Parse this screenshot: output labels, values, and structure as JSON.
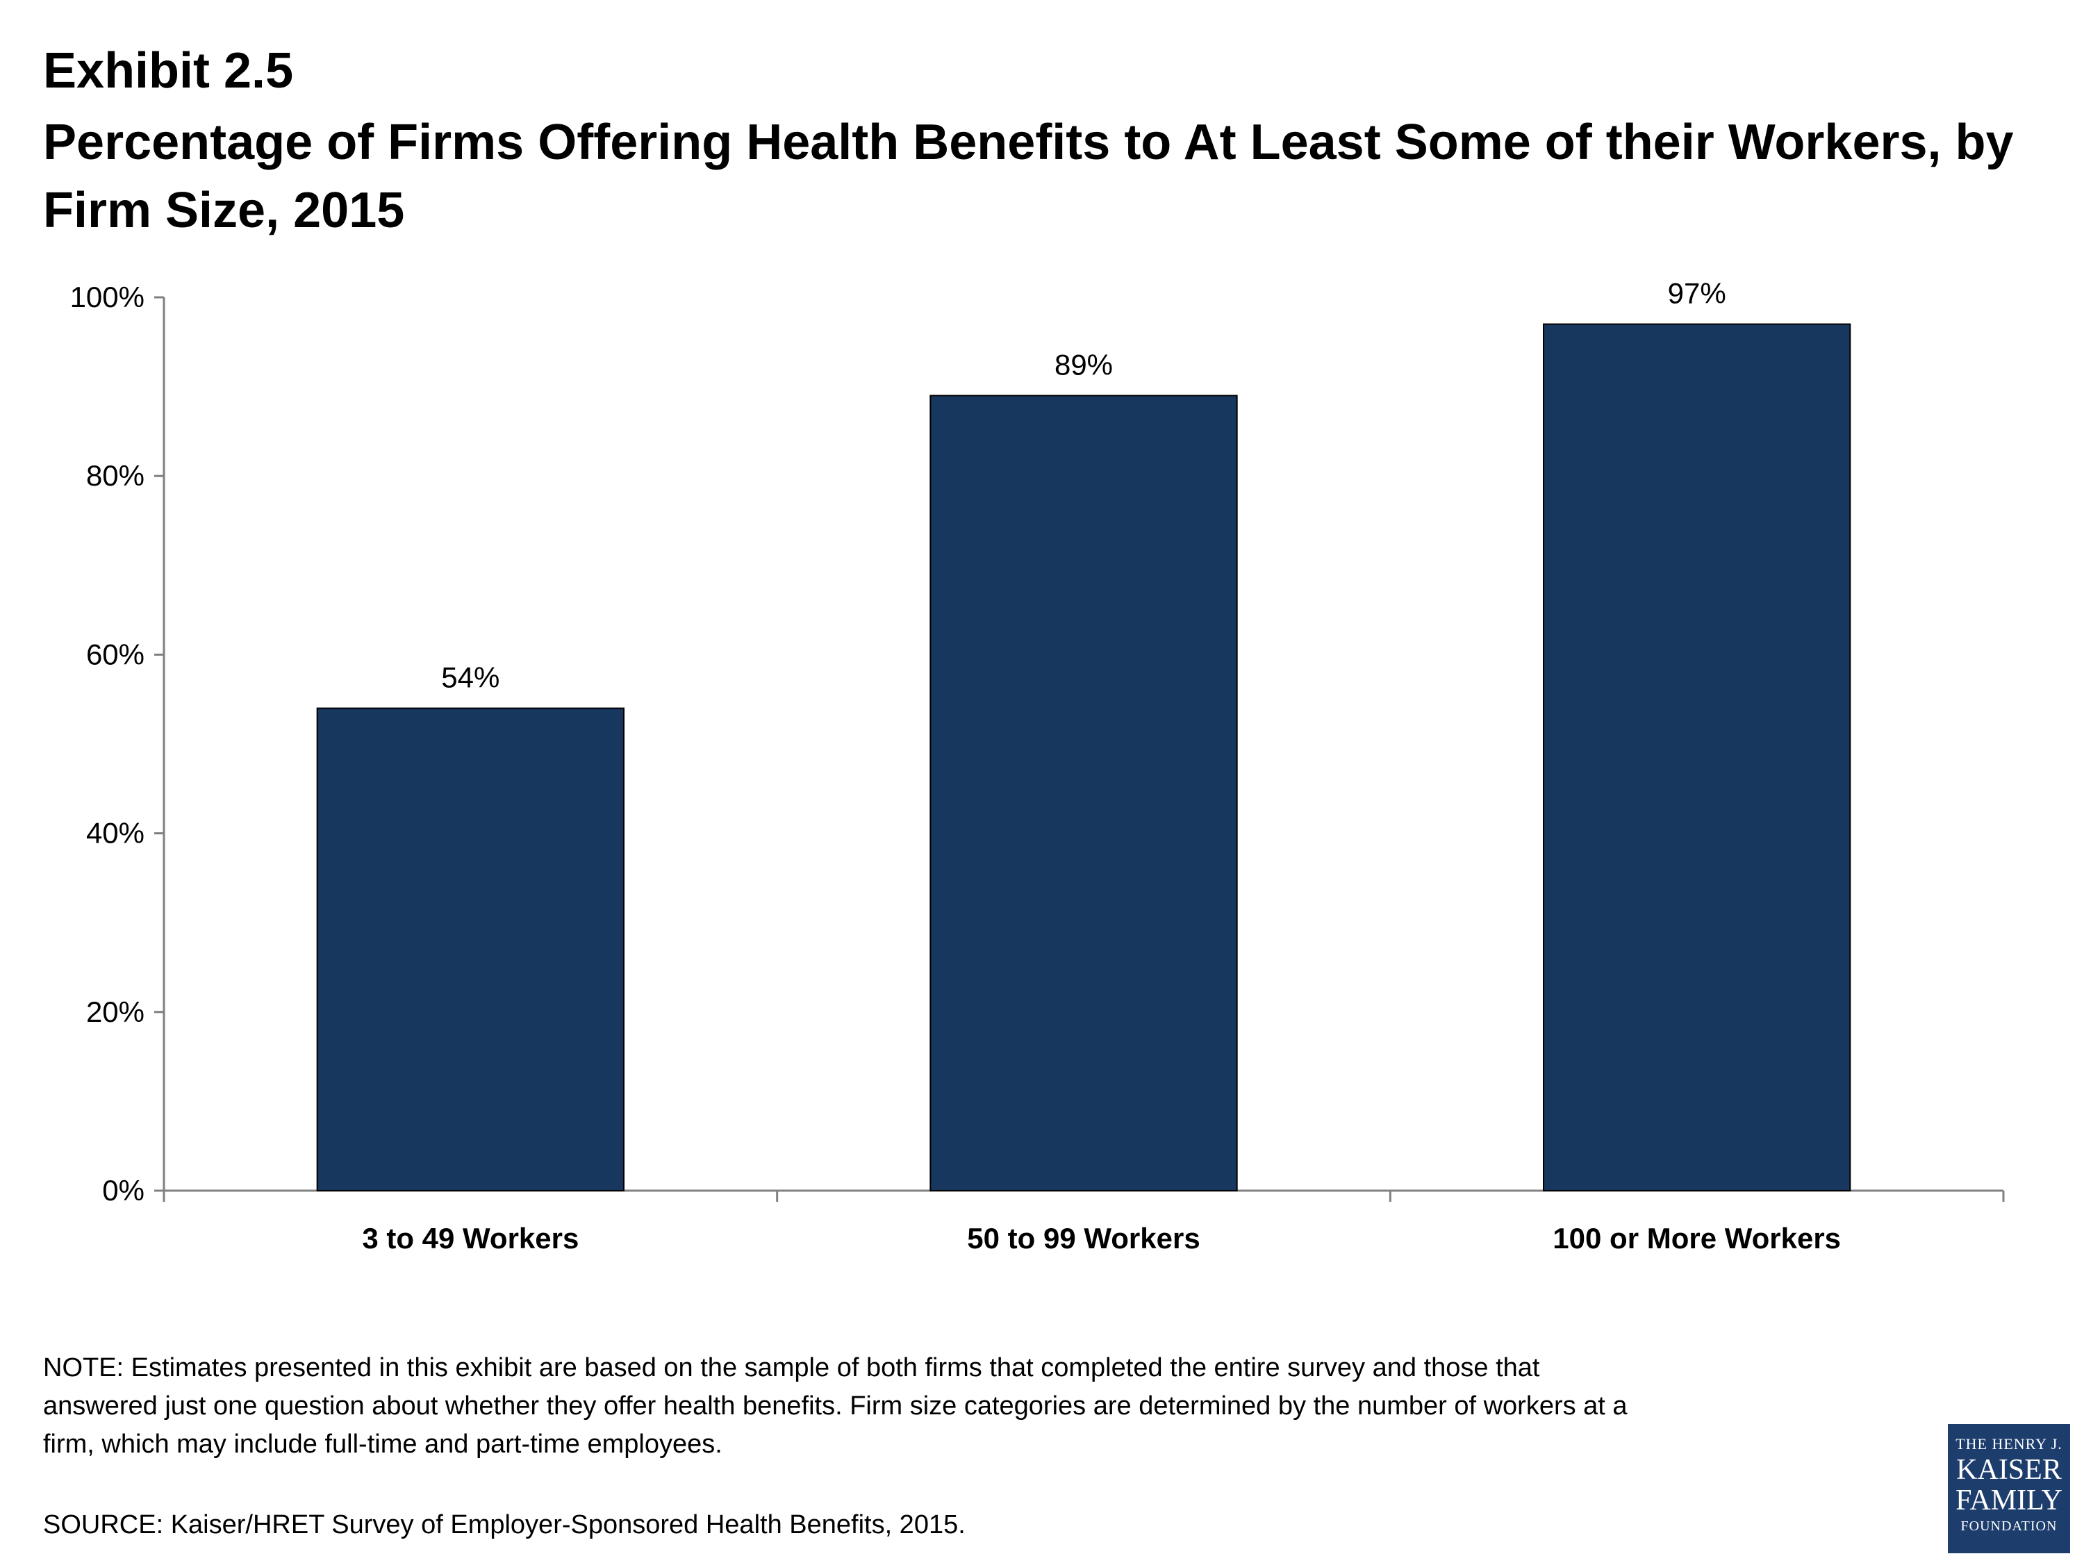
{
  "header": {
    "exhibit": "Exhibit 2.5",
    "title": "Percentage of Firms Offering Health Benefits to At Least Some of their Workers, by Firm Size, 2015"
  },
  "chart_data": {
    "type": "bar",
    "categories": [
      "3 to 49 Workers",
      "50 to 99 Workers",
      "100 or More Workers"
    ],
    "values": [
      54,
      89,
      97
    ],
    "data_labels": [
      "54%",
      "89%",
      "97%"
    ],
    "y_ticks": [
      "0%",
      "20%",
      "40%",
      "60%",
      "80%",
      "100%"
    ],
    "y_tick_values": [
      0,
      20,
      40,
      60,
      80,
      100
    ],
    "ylim": [
      0,
      100
    ],
    "xlabel": "",
    "ylabel": "",
    "grid": false,
    "bar_color": "#17375e"
  },
  "footer": {
    "note": "NOTE: Estimates presented in this exhibit are based on the sample of both firms that completed the entire survey and those that answered just one question about whether they offer health benefits.  Firm size categories are determined by the number of workers at a firm, which may include full-time and part-time employees.",
    "source": "SOURCE:  Kaiser/HRET Survey of Employer-Sponsored Health Benefits, 2015."
  },
  "logo": {
    "line1": "THE HENRY J.",
    "line2": "KAISER",
    "line3": "FAMILY",
    "line4": "FOUNDATION",
    "color": "#1d3d6d"
  }
}
